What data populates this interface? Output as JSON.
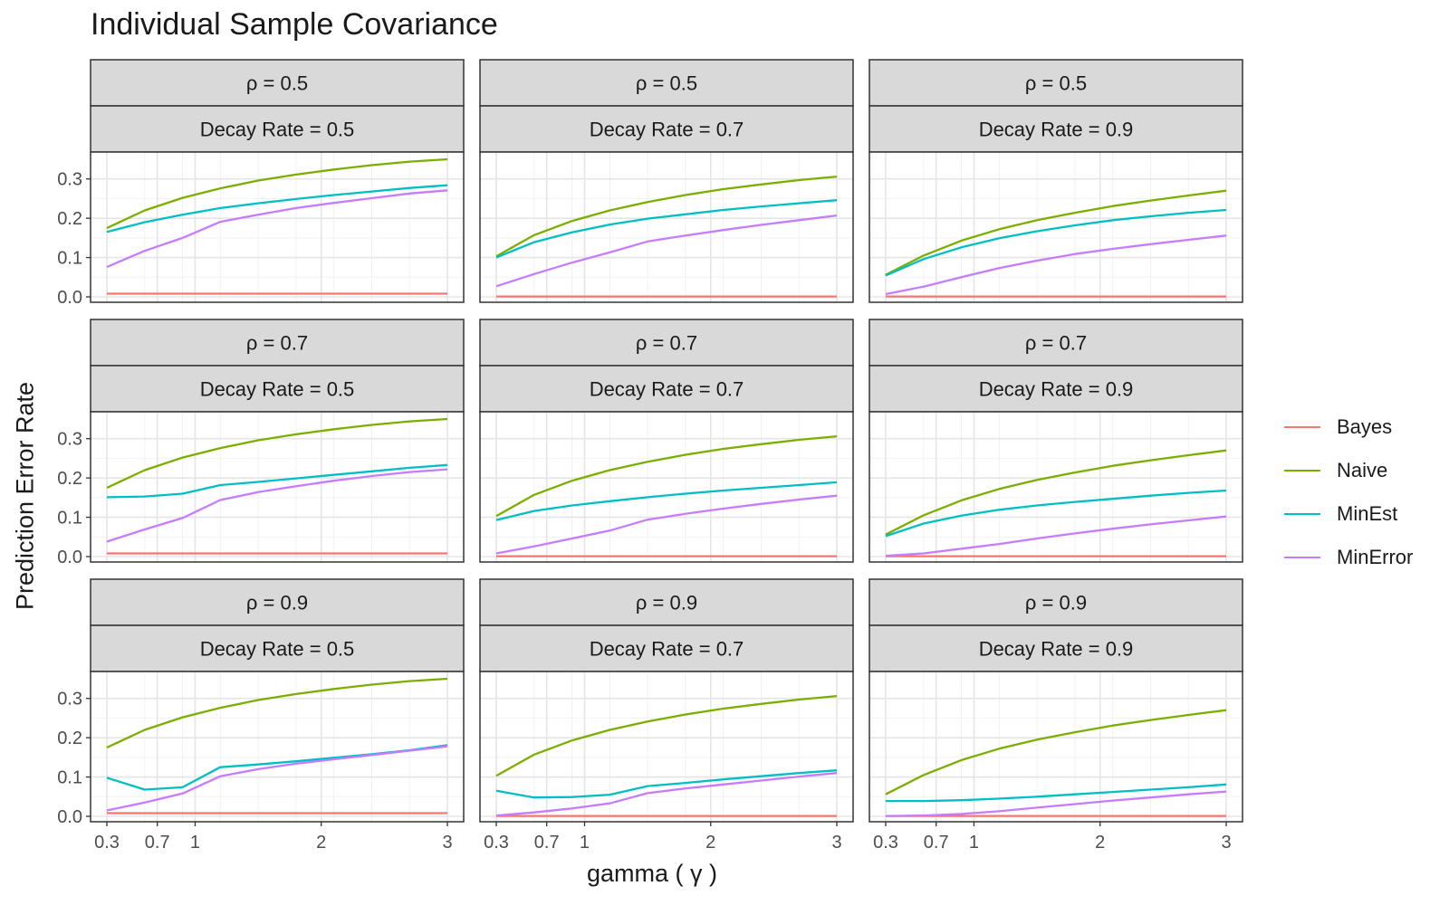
{
  "title": "Individual Sample Covariance",
  "ylabel": "Prediction Error Rate",
  "xlabel": "gamma ( γ )",
  "legend": [
    {
      "name": "Bayes",
      "color": "#F8766D"
    },
    {
      "name": "Naive",
      "color": "#7CAE00"
    },
    {
      "name": "MinEst",
      "color": "#00BFC4"
    },
    {
      "name": "MinError",
      "color": "#C77CFF"
    }
  ],
  "chart_data": {
    "type": "line",
    "facet_rows_label": "ρ",
    "facet_cols_label": "Decay Rate",
    "x": [
      0.3,
      0.6,
      0.9,
      1.2,
      1.5,
      1.8,
      2.1,
      2.4,
      2.7,
      3.0
    ],
    "x_ticks": [
      0.3,
      0.7,
      1,
      2,
      3
    ],
    "x_tick_labels": [
      "0.3",
      "0.7",
      "1",
      "2",
      "3"
    ],
    "xlim": [
      0.3,
      3.0
    ],
    "ylim": [
      0,
      0.35
    ],
    "y_ticks": [
      0,
      0.1,
      0.2,
      0.3
    ],
    "y_tick_labels": [
      "0.0",
      "0.1",
      "0.2",
      "0.3"
    ],
    "panels": [
      {
        "rho_label": "ρ  = 0.5",
        "decay_label": "Decay Rate  = 0.5",
        "series": [
          {
            "name": "Bayes",
            "values": [
              0.008,
              0.008,
              0.008,
              0.008,
              0.008,
              0.008,
              0.008,
              0.008,
              0.008,
              0.008
            ]
          },
          {
            "name": "Naive",
            "values": [
              0.175,
              0.22,
              0.252,
              0.276,
              0.296,
              0.311,
              0.324,
              0.335,
              0.344,
              0.35
            ]
          },
          {
            "name": "MinEst",
            "values": [
              0.165,
              0.19,
              0.209,
              0.226,
              0.238,
              0.249,
              0.259,
              0.268,
              0.277,
              0.284
            ]
          },
          {
            "name": "MinError",
            "values": [
              0.076,
              0.117,
              0.15,
              0.191,
              0.209,
              0.226,
              0.239,
              0.251,
              0.263,
              0.271
            ]
          }
        ]
      },
      {
        "rho_label": "ρ  = 0.5",
        "decay_label": "Decay Rate  = 0.7",
        "series": [
          {
            "name": "Bayes",
            "values": [
              0.001,
              0.001,
              0.001,
              0.001,
              0.001,
              0.001,
              0.001,
              0.001,
              0.001,
              0.001
            ]
          },
          {
            "name": "Naive",
            "values": [
              0.103,
              0.157,
              0.193,
              0.22,
              0.241,
              0.259,
              0.274,
              0.286,
              0.297,
              0.306
            ]
          },
          {
            "name": "MinEst",
            "values": [
              0.1,
              0.139,
              0.164,
              0.184,
              0.199,
              0.21,
              0.221,
              0.23,
              0.238,
              0.246
            ]
          },
          {
            "name": "MinError",
            "values": [
              0.027,
              0.058,
              0.087,
              0.113,
              0.141,
              0.156,
              0.17,
              0.183,
              0.195,
              0.207
            ]
          }
        ]
      },
      {
        "rho_label": "ρ  = 0.5",
        "decay_label": "Decay Rate  = 0.9",
        "series": [
          {
            "name": "Bayes",
            "values": [
              0.001,
              0.001,
              0.001,
              0.001,
              0.001,
              0.001,
              0.001,
              0.001,
              0.001,
              0.001
            ]
          },
          {
            "name": "Naive",
            "values": [
              0.056,
              0.105,
              0.143,
              0.172,
              0.195,
              0.214,
              0.231,
              0.245,
              0.258,
              0.27
            ]
          },
          {
            "name": "MinEst",
            "values": [
              0.054,
              0.096,
              0.126,
              0.149,
              0.167,
              0.182,
              0.195,
              0.205,
              0.214,
              0.221
            ]
          },
          {
            "name": "MinError",
            "values": [
              0.007,
              0.026,
              0.05,
              0.073,
              0.092,
              0.109,
              0.122,
              0.134,
              0.145,
              0.156
            ]
          }
        ]
      },
      {
        "rho_label": "ρ  = 0.7",
        "decay_label": "Decay Rate  = 0.5",
        "series": [
          {
            "name": "Bayes",
            "values": [
              0.008,
              0.008,
              0.008,
              0.008,
              0.008,
              0.008,
              0.008,
              0.008,
              0.008,
              0.008
            ]
          },
          {
            "name": "Naive",
            "values": [
              0.175,
              0.22,
              0.252,
              0.276,
              0.296,
              0.311,
              0.324,
              0.335,
              0.344,
              0.35
            ]
          },
          {
            "name": "MinEst",
            "values": [
              0.151,
              0.153,
              0.16,
              0.182,
              0.19,
              0.199,
              0.208,
              0.217,
              0.226,
              0.233
            ]
          },
          {
            "name": "MinError",
            "values": [
              0.038,
              0.069,
              0.098,
              0.144,
              0.164,
              0.179,
              0.193,
              0.205,
              0.215,
              0.222
            ]
          }
        ]
      },
      {
        "rho_label": "ρ  = 0.7",
        "decay_label": "Decay Rate  = 0.7",
        "series": [
          {
            "name": "Bayes",
            "values": [
              0.001,
              0.001,
              0.001,
              0.001,
              0.001,
              0.001,
              0.001,
              0.001,
              0.001,
              0.001
            ]
          },
          {
            "name": "Naive",
            "values": [
              0.103,
              0.157,
              0.193,
              0.22,
              0.241,
              0.259,
              0.274,
              0.286,
              0.297,
              0.306
            ]
          },
          {
            "name": "MinEst",
            "values": [
              0.093,
              0.116,
              0.13,
              0.141,
              0.151,
              0.16,
              0.168,
              0.175,
              0.182,
              0.189
            ]
          },
          {
            "name": "MinError",
            "values": [
              0.008,
              0.026,
              0.046,
              0.066,
              0.094,
              0.109,
              0.122,
              0.134,
              0.145,
              0.155
            ]
          }
        ]
      },
      {
        "rho_label": "ρ  = 0.7",
        "decay_label": "Decay Rate  = 0.9",
        "series": [
          {
            "name": "Bayes",
            "values": [
              0.001,
              0.001,
              0.001,
              0.001,
              0.001,
              0.001,
              0.001,
              0.001,
              0.001,
              0.001
            ]
          },
          {
            "name": "Naive",
            "values": [
              0.056,
              0.105,
              0.143,
              0.172,
              0.195,
              0.214,
              0.231,
              0.245,
              0.258,
              0.27
            ]
          },
          {
            "name": "MinEst",
            "values": [
              0.052,
              0.084,
              0.104,
              0.119,
              0.13,
              0.139,
              0.147,
              0.155,
              0.162,
              0.168
            ]
          },
          {
            "name": "MinError",
            "values": [
              0.002,
              0.008,
              0.02,
              0.032,
              0.046,
              0.059,
              0.071,
              0.082,
              0.092,
              0.102
            ]
          }
        ]
      },
      {
        "rho_label": "ρ  = 0.9",
        "decay_label": "Decay Rate  = 0.5",
        "series": [
          {
            "name": "Bayes",
            "values": [
              0.008,
              0.008,
              0.008,
              0.008,
              0.008,
              0.008,
              0.008,
              0.008,
              0.008,
              0.008
            ]
          },
          {
            "name": "Naive",
            "values": [
              0.175,
              0.22,
              0.252,
              0.276,
              0.296,
              0.311,
              0.324,
              0.335,
              0.344,
              0.35
            ]
          },
          {
            "name": "MinEst",
            "values": [
              0.098,
              0.068,
              0.074,
              0.125,
              0.132,
              0.14,
              0.149,
              0.158,
              0.168,
              0.181
            ]
          },
          {
            "name": "MinError",
            "values": [
              0.015,
              0.035,
              0.058,
              0.102,
              0.12,
              0.134,
              0.145,
              0.156,
              0.167,
              0.178
            ]
          }
        ]
      },
      {
        "rho_label": "ρ  = 0.9",
        "decay_label": "Decay Rate  = 0.7",
        "series": [
          {
            "name": "Bayes",
            "values": [
              0.001,
              0.001,
              0.001,
              0.001,
              0.001,
              0.001,
              0.001,
              0.001,
              0.001,
              0.001
            ]
          },
          {
            "name": "Naive",
            "values": [
              0.103,
              0.157,
              0.193,
              0.22,
              0.241,
              0.259,
              0.274,
              0.286,
              0.297,
              0.306
            ]
          },
          {
            "name": "MinEst",
            "values": [
              0.065,
              0.048,
              0.049,
              0.055,
              0.077,
              0.085,
              0.094,
              0.102,
              0.11,
              0.117
            ]
          },
          {
            "name": "MinError",
            "values": [
              0.002,
              0.01,
              0.02,
              0.033,
              0.059,
              0.071,
              0.081,
              0.091,
              0.101,
              0.11
            ]
          }
        ]
      },
      {
        "rho_label": "ρ  = 0.9",
        "decay_label": "Decay Rate  = 0.9",
        "series": [
          {
            "name": "Bayes",
            "values": [
              0.001,
              0.001,
              0.001,
              0.001,
              0.001,
              0.001,
              0.001,
              0.001,
              0.001,
              0.001
            ]
          },
          {
            "name": "Naive",
            "values": [
              0.056,
              0.105,
              0.143,
              0.172,
              0.195,
              0.214,
              0.231,
              0.245,
              0.258,
              0.27
            ]
          },
          {
            "name": "MinEst",
            "values": [
              0.039,
              0.039,
              0.041,
              0.045,
              0.05,
              0.056,
              0.062,
              0.068,
              0.074,
              0.081
            ]
          },
          {
            "name": "MinError",
            "values": [
              0.001,
              0.002,
              0.006,
              0.013,
              0.022,
              0.031,
              0.04,
              0.048,
              0.056,
              0.063
            ]
          }
        ]
      }
    ]
  }
}
